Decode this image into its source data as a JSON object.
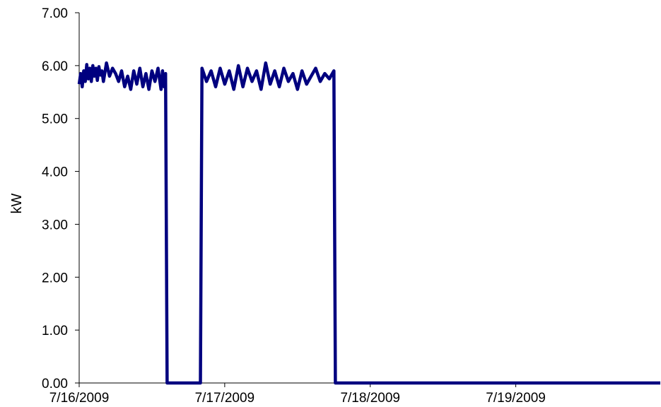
{
  "chart_data": {
    "type": "line",
    "title": "",
    "xlabel": "",
    "ylabel": "kW",
    "ylim": [
      0,
      7
    ],
    "y_ticks": [
      "0.00",
      "1.00",
      "2.00",
      "3.00",
      "4.00",
      "5.00",
      "6.00",
      "7.00"
    ],
    "y_tick_values": [
      0,
      1,
      2,
      3,
      4,
      5,
      6,
      7
    ],
    "x_ticks": [
      "7/16/2009",
      "7/17/2009",
      "7/18/2009",
      "7/19/2009"
    ],
    "xlim": [
      "7/16/2009 00:00",
      "7/19/2009 23:50"
    ],
    "grid": false,
    "legend": "none",
    "line_color": "#00007F",
    "series": [
      {
        "x": [
          "7/16/2009 00:00",
          "7/16/2009 00:15",
          "7/16/2009 00:30",
          "7/16/2009 00:45",
          "7/16/2009 01:00",
          "7/16/2009 01:15",
          "7/16/2009 01:30",
          "7/16/2009 01:45",
          "7/16/2009 02:00",
          "7/16/2009 02:15",
          "7/16/2009 02:30",
          "7/16/2009 02:45",
          "7/16/2009 03:00",
          "7/16/2009 03:15",
          "7/16/2009 03:30",
          "7/16/2009 03:45",
          "7/16/2009 04:00",
          "7/16/2009 04:30",
          "7/16/2009 05:00",
          "7/16/2009 05:30",
          "7/16/2009 06:00",
          "7/16/2009 06:30",
          "7/16/2009 07:00",
          "7/16/2009 07:30",
          "7/16/2009 08:00",
          "7/16/2009 08:30",
          "7/16/2009 09:00",
          "7/16/2009 09:30",
          "7/16/2009 10:00",
          "7/16/2009 10:30",
          "7/16/2009 11:00",
          "7/16/2009 11:30",
          "7/16/2009 12:00",
          "7/16/2009 12:30",
          "7/16/2009 13:00",
          "7/16/2009 13:30",
          "7/16/2009 13:45",
          "7/16/2009 14:00",
          "7/16/2009 14:15",
          "7/16/2009 14:30",
          "7/16/2009 20:00",
          "7/16/2009 20:15",
          "7/16/2009 21:00",
          "7/16/2009 21:45",
          "7/16/2009 22:30",
          "7/16/2009 23:15",
          "7/17/2009 00:00",
          "7/17/2009 00:45",
          "7/17/2009 01:30",
          "7/17/2009 02:15",
          "7/17/2009 03:00",
          "7/17/2009 03:45",
          "7/17/2009 04:30",
          "7/17/2009 05:15",
          "7/17/2009 06:00",
          "7/17/2009 06:45",
          "7/17/2009 07:30",
          "7/17/2009 08:15",
          "7/17/2009 09:00",
          "7/17/2009 09:45",
          "7/17/2009 10:30",
          "7/17/2009 11:15",
          "7/17/2009 12:00",
          "7/17/2009 12:45",
          "7/17/2009 13:30",
          "7/17/2009 14:15",
          "7/17/2009 15:00",
          "7/17/2009 15:45",
          "7/17/2009 16:30",
          "7/17/2009 17:15",
          "7/17/2009 18:00",
          "7/17/2009 18:15",
          "7/19/2009 23:50"
        ],
        "values": [
          5.65,
          5.85,
          5.6,
          5.9,
          5.7,
          6.02,
          5.75,
          5.95,
          5.7,
          6.0,
          5.8,
          5.95,
          5.72,
          5.98,
          5.82,
          5.9,
          5.7,
          6.05,
          5.8,
          5.95,
          5.85,
          5.7,
          5.9,
          5.6,
          5.8,
          5.55,
          5.9,
          5.65,
          5.95,
          5.6,
          5.85,
          5.55,
          5.9,
          5.7,
          5.95,
          5.55,
          5.9,
          5.6,
          5.85,
          0,
          0,
          5.95,
          5.7,
          5.9,
          5.6,
          5.95,
          5.65,
          5.9,
          5.55,
          6.0,
          5.6,
          5.95,
          5.7,
          5.9,
          5.55,
          6.05,
          5.65,
          5.9,
          5.6,
          5.95,
          5.7,
          5.85,
          5.55,
          5.9,
          5.65,
          5.8,
          5.95,
          5.7,
          5.85,
          5.75,
          5.9,
          0,
          0
        ]
      }
    ]
  }
}
